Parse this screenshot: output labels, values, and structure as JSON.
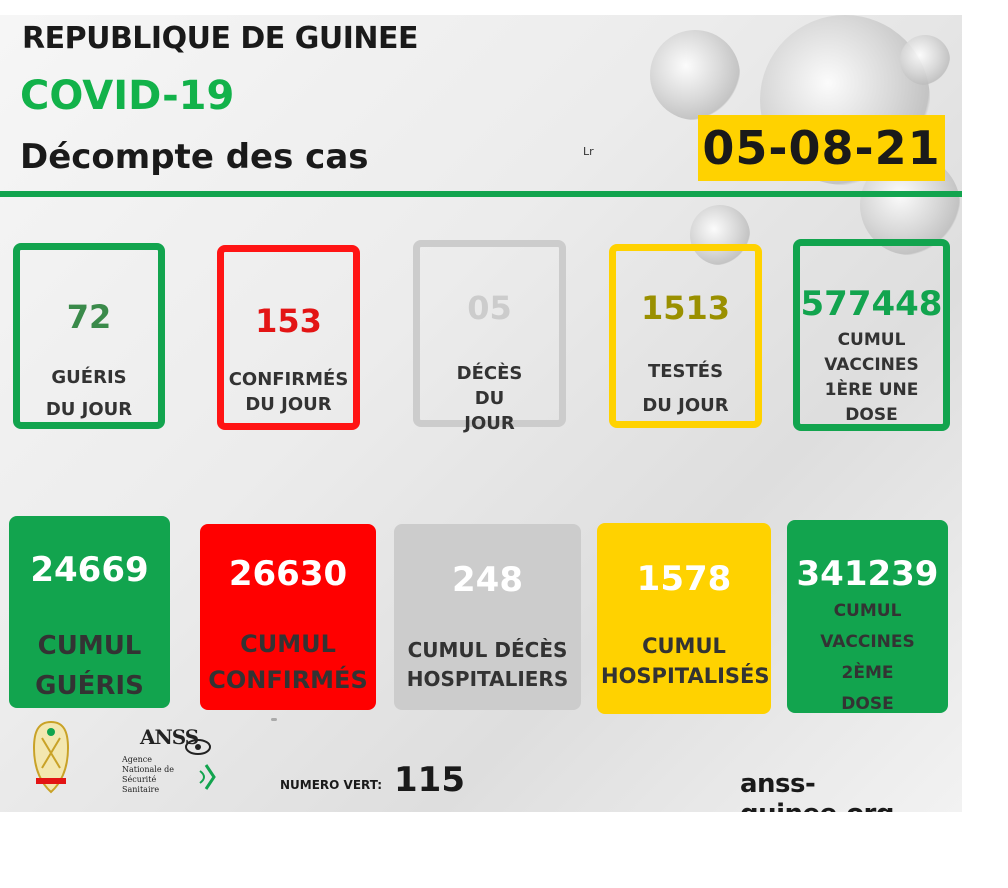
{
  "header": {
    "country": "REPUBLIQUE DE GUINEE",
    "topic": "COVID-19",
    "subtitle": "Décompte des cas",
    "mark": "Lr",
    "date": "05-08-21"
  },
  "colors": {
    "green": "#12a44e",
    "red": "#ff1414",
    "grey": "#cccccc",
    "yellow": "#ffd200",
    "title_green": "#12b24a"
  },
  "daily": [
    {
      "value": "72",
      "label": "GUÉRIS DU JOUR",
      "color": "#12a44e"
    },
    {
      "value": "153",
      "label": "CONFIRMÉS DU JOUR",
      "color": "#ff1414"
    },
    {
      "value": "05",
      "label": "DÉCÈS DU JOUR",
      "color": "#cccccc"
    },
    {
      "value": "1513",
      "label": "TESTÉS DU JOUR",
      "color": "#9a9000"
    },
    {
      "value": "577448",
      "label": "CUMUL VACCINES 1ÈRE UNE DOSE",
      "color": "#12a44e"
    }
  ],
  "cumulative": [
    {
      "value": "24669",
      "label": "CUMUL GUÉRIS"
    },
    {
      "value": "26630",
      "label": "CUMUL CONFIRMÉS"
    },
    {
      "value": "248",
      "label": "CUMUL DÉCÈS HOSPITALIERS"
    },
    {
      "value": "1578",
      "label": "CUMUL HOSPITALISÉS"
    },
    {
      "value": "341239",
      "label": "CUMUL VACCINES 2ÈME DOSE"
    }
  ],
  "footer": {
    "anss_logo_text": "ANSS",
    "anss_name": "Agence Nationale de Sécurité Sanitaire",
    "hotline_label": "NUMERO VERT:",
    "hotline_number": "115",
    "website": "anss-guinee.org"
  }
}
